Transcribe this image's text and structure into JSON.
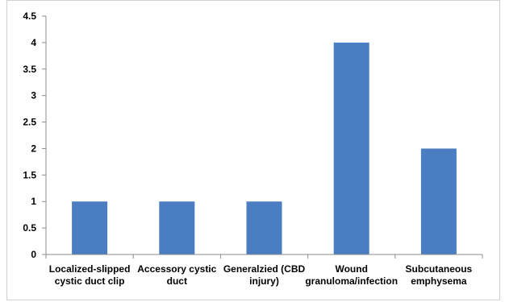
{
  "chart_data": {
    "type": "bar",
    "title": "",
    "xlabel": "",
    "ylabel": "",
    "categories": [
      [
        "Localized-slipped",
        "cystic duct clip"
      ],
      [
        "Accessory cystic",
        "duct"
      ],
      [
        "Generalzied (CBD",
        "injury)"
      ],
      [
        "Wound",
        "granuloma/infection"
      ],
      [
        "Subcutaneous",
        "emphysema"
      ]
    ],
    "values": [
      1,
      1,
      1,
      4,
      2
    ],
    "ylim": [
      0,
      4.5
    ],
    "yticks": [
      "0",
      "0.5",
      "1",
      "1.5",
      "2",
      "2.5",
      "3",
      "3.5",
      "4",
      "4.5"
    ],
    "ytick_values": [
      0,
      0.5,
      1,
      1.5,
      2,
      2.5,
      3,
      3.5,
      4,
      4.5
    ],
    "grid": false,
    "legend": "none",
    "bar_color": "#4a7dc1"
  }
}
